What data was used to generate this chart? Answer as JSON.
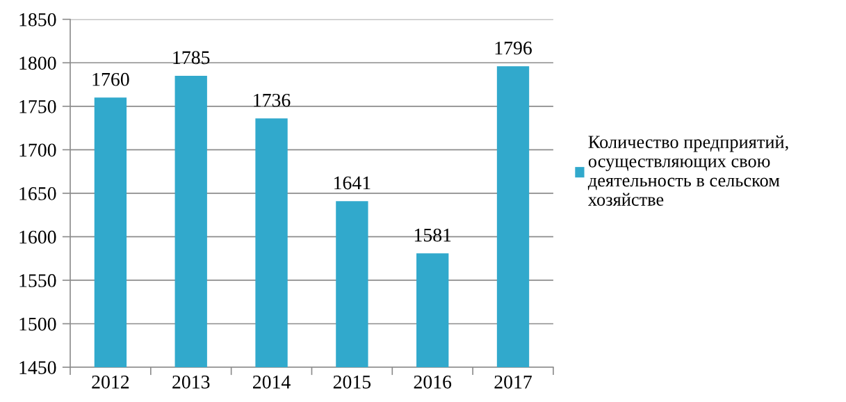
{
  "chart_data": {
    "type": "bar",
    "categories": [
      "2012",
      "2013",
      "2014",
      "2015",
      "2016",
      "2017"
    ],
    "series": [
      {
        "name": "Количество предприятий,\nосуществляющих свою\nдеятельность в сельском\nхозяйстве",
        "color": "#31a9cc",
        "values": [
          1760,
          1785,
          1736,
          1641,
          1581,
          1796
        ]
      }
    ],
    "ylim": [
      1450,
      1850
    ],
    "yticks": [
      1450,
      1500,
      1550,
      1600,
      1650,
      1700,
      1750,
      1800,
      1850
    ],
    "grid": "y",
    "legend": "right",
    "data_labels": true
  }
}
